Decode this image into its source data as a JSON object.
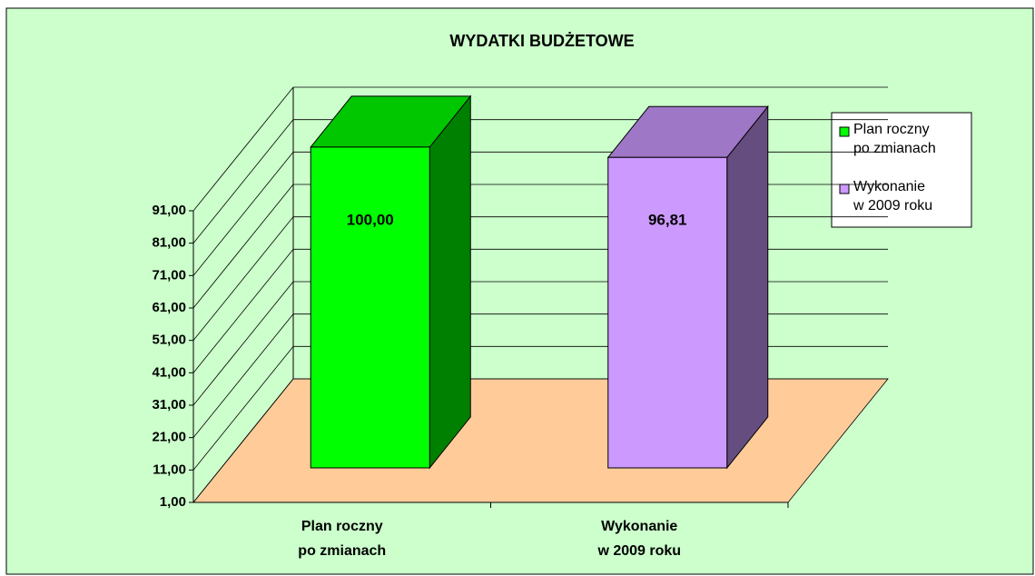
{
  "chart_data": {
    "type": "bar3d",
    "title": "WYDATKI  BUDŻETOWE",
    "categories": [
      "Plan roczny\npo zmianach",
      "Wykonanie\nw  2009 roku"
    ],
    "values": [
      100,
      96.81
    ],
    "value_labels": [
      "100,00",
      "96,81"
    ],
    "colors": [
      "#00ff00",
      "#cc99ff"
    ],
    "ylim": [
      1,
      91
    ],
    "yticks": [
      {
        "value": 1,
        "label": "1,00"
      },
      {
        "value": 11,
        "label": "11,00"
      },
      {
        "value": 21,
        "label": "21,00"
      },
      {
        "value": 31,
        "label": "31,00"
      },
      {
        "value": 41,
        "label": "41,00"
      },
      {
        "value": 51,
        "label": "51,00"
      },
      {
        "value": 61,
        "label": "61,00"
      },
      {
        "value": 71,
        "label": "71,00"
      },
      {
        "value": 81,
        "label": "81,00"
      },
      {
        "value": 91,
        "label": "91,00"
      }
    ],
    "grid": true,
    "legend": "right"
  }
}
